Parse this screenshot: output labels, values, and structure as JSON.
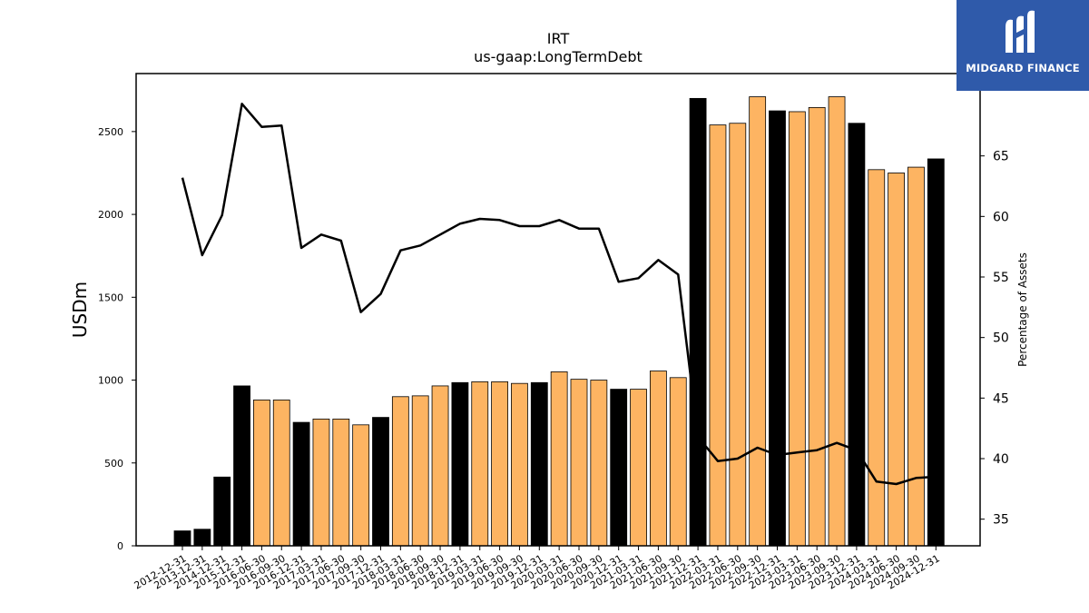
{
  "chart_data": {
    "type": "bar",
    "title": "IRT",
    "subtitle": "us-gaap:LongTermDebt",
    "ylabel": "USDm",
    "y2label": "Percentage of Assets",
    "ylim": [
      0,
      2850
    ],
    "y2lim": [
      32.8,
      71.8
    ],
    "yticks": [
      0,
      500,
      1000,
      1500,
      2000,
      2500
    ],
    "y2ticks": [
      35,
      40,
      45,
      50,
      55,
      60,
      65
    ],
    "categories": [
      "2012-12-31",
      "2013-12-31",
      "2014-12-31",
      "2015-12-31",
      "2016-06-30",
      "2016-09-30",
      "2016-12-31",
      "2017-03-31",
      "2017-06-30",
      "2017-09-30",
      "2017-12-31",
      "2018-03-31",
      "2018-06-30",
      "2018-09-30",
      "2018-12-31",
      "2019-03-31",
      "2019-06-30",
      "2019-09-30",
      "2019-12-31",
      "2020-03-31",
      "2020-06-30",
      "2020-09-30",
      "2020-12-31",
      "2021-03-31",
      "2021-06-30",
      "2021-09-30",
      "2021-12-31",
      "2022-03-31",
      "2022-06-30",
      "2022-09-30",
      "2022-12-31",
      "2023-03-31",
      "2023-06-30",
      "2023-09-30",
      "2023-12-31",
      "2024-03-31",
      "2024-06-30",
      "2024-09-30",
      "2024-12-31"
    ],
    "series": [
      {
        "type": "bar",
        "values": [
          90,
          100,
          415,
          965,
          880,
          880,
          745,
          765,
          765,
          730,
          775,
          900,
          905,
          965,
          985,
          990,
          990,
          980,
          985,
          1050,
          1005,
          1000,
          945,
          945,
          1055,
          1015,
          2700,
          2540,
          2550,
          2710,
          2625,
          2620,
          2645,
          2710,
          2550,
          2270,
          2250,
          2285,
          2335
        ],
        "annual_color": "#000000",
        "quarterly_color": "#fdb462"
      },
      {
        "type": "line",
        "axis": "secondary",
        "color": "#000000",
        "values": [
          63.2,
          56.8,
          60.1,
          69.3,
          67.4,
          67.5,
          57.4,
          58.5,
          58.0,
          52.1,
          53.6,
          57.2,
          57.6,
          58.5,
          59.4,
          59.8,
          59.7,
          59.2,
          59.2,
          59.7,
          59.0,
          59.0,
          54.6,
          54.9,
          56.4,
          55.2,
          41.8,
          39.8,
          40.0,
          40.9,
          40.3,
          40.5,
          40.7,
          41.3,
          40.7,
          38.1,
          37.9,
          38.4,
          38.5
        ]
      }
    ],
    "annual_flags": [
      1,
      1,
      1,
      1,
      0,
      0,
      1,
      0,
      0,
      0,
      1,
      0,
      0,
      0,
      1,
      0,
      0,
      0,
      1,
      0,
      0,
      0,
      1,
      0,
      0,
      0,
      1,
      0,
      0,
      0,
      1,
      0,
      0,
      0,
      1,
      0,
      0,
      0,
      1
    ],
    "grid": false,
    "legend": "none"
  },
  "logo": {
    "text": "MIDGARD FINANCE",
    "bg_color": "#2f5aaa",
    "icon": "midgard-logo-icon"
  }
}
